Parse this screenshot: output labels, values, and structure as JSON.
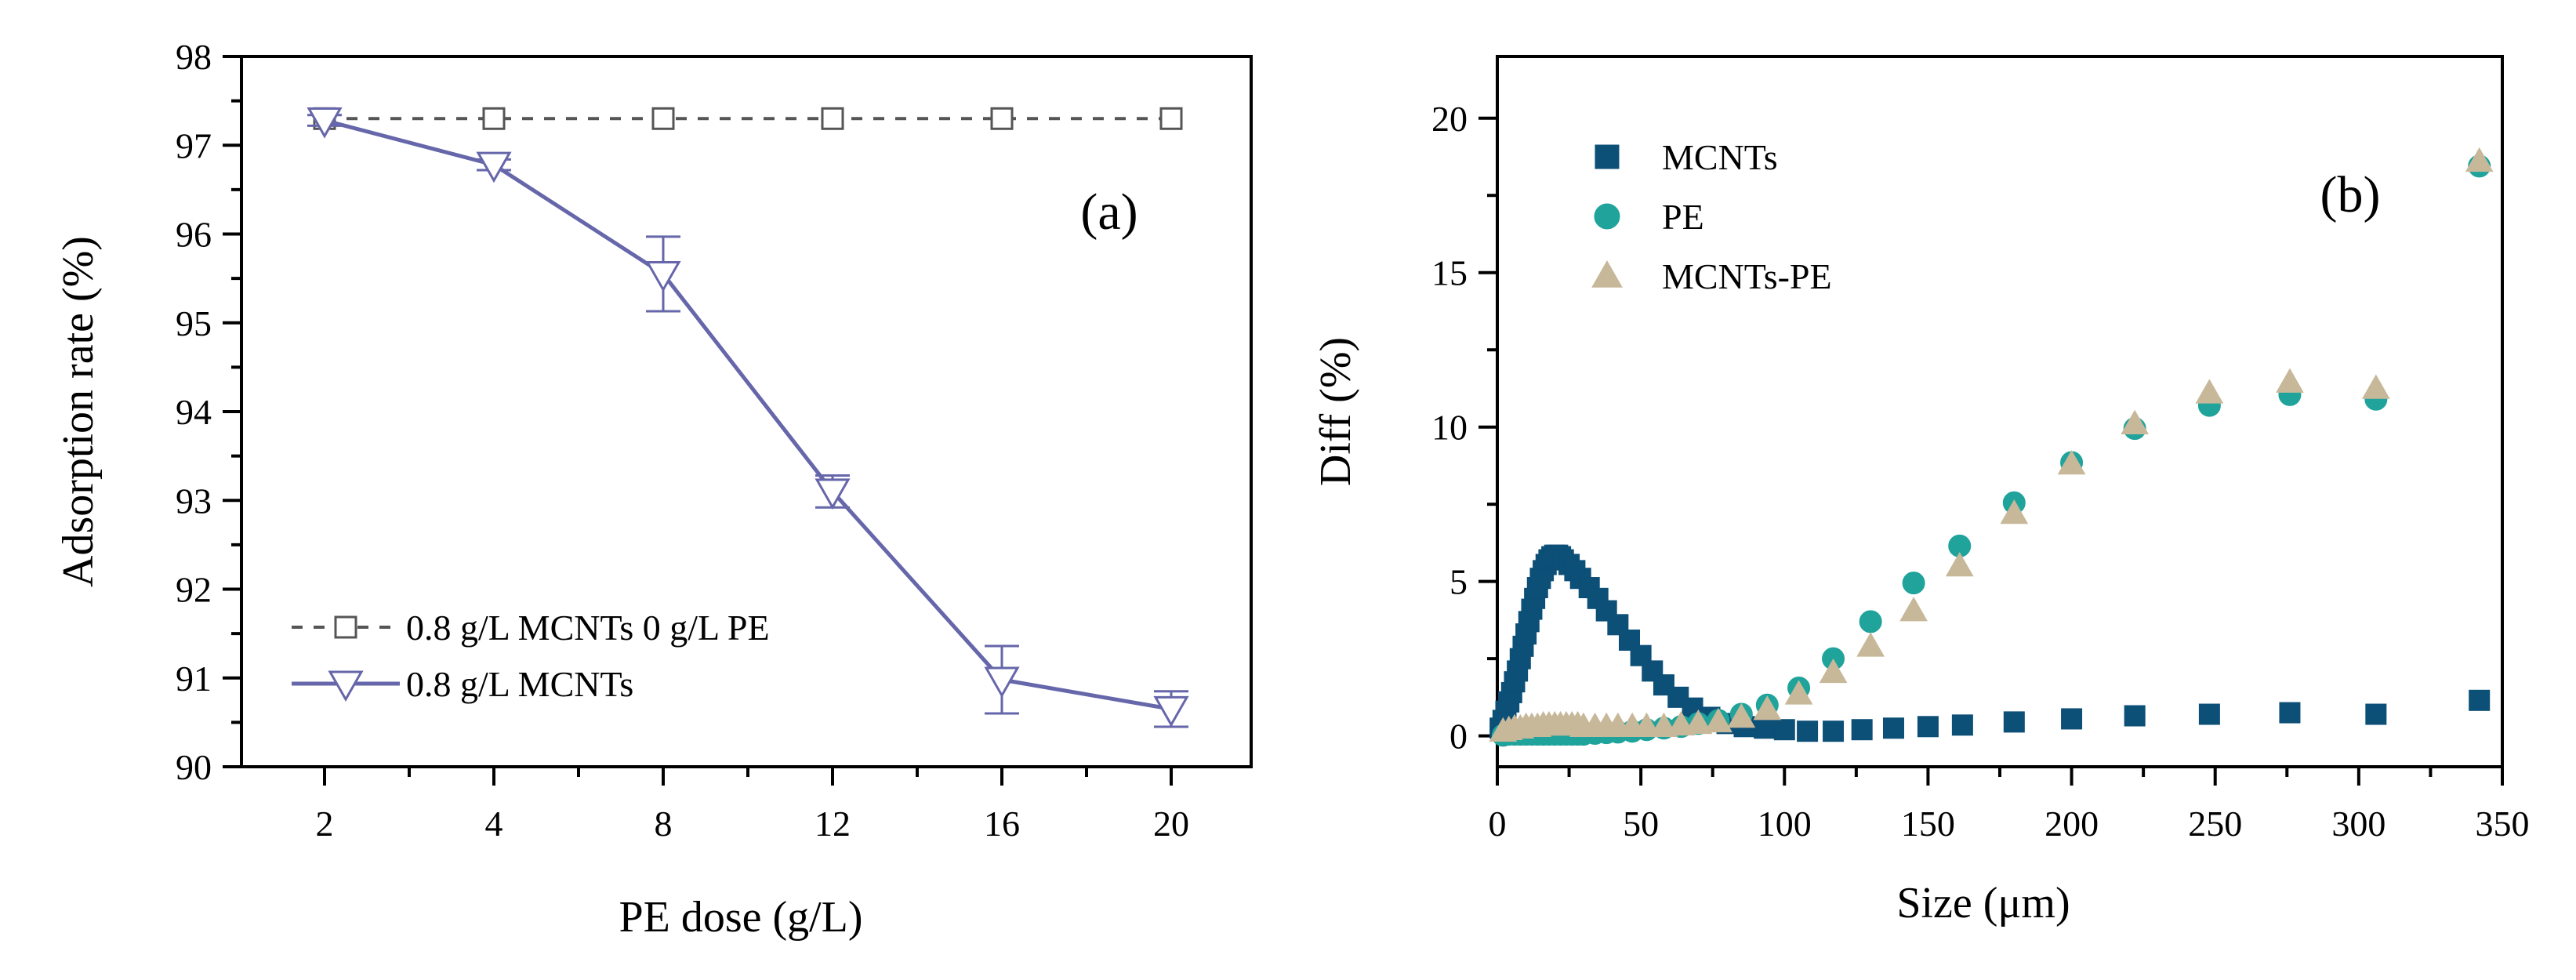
{
  "chart_data": [
    {
      "type": "line",
      "panel_label": "(a)",
      "xlabel": "PE dose (g/L)",
      "ylabel": "Adsorption rate (%)",
      "categories": [
        "2",
        "4",
        "8",
        "12",
        "16",
        "20"
      ],
      "ylim": [
        90,
        98
      ],
      "yticks": [
        "90",
        "91",
        "92",
        "93",
        "94",
        "95",
        "96",
        "97",
        "98"
      ],
      "legend_position": "bottom-left",
      "grid": false,
      "series": [
        {
          "name": "0.8 g/L MCNTs 0 g/L PE",
          "values": [
            97.3,
            97.3,
            97.3,
            97.3,
            97.3,
            97.3
          ],
          "marker": "square-open",
          "line": "dashed",
          "color": "#555555"
        },
        {
          "name": "0.8 g/L MCNTs",
          "values": [
            97.28,
            96.78,
            95.55,
            93.1,
            90.98,
            90.65
          ],
          "error": [
            0.06,
            0.06,
            0.42,
            0.18,
            0.38,
            0.2
          ],
          "marker": "triangle-down-open",
          "line": "solid",
          "color": "#6666aa"
        }
      ]
    },
    {
      "type": "scatter",
      "panel_label": "(b)",
      "xlabel": "Size (μm)",
      "ylabel": "Diff (%)",
      "xlim": [
        0,
        350
      ],
      "ylim": [
        -1,
        22
      ],
      "xticks": [
        "0",
        "50",
        "100",
        "150",
        "200",
        "250",
        "300",
        "350"
      ],
      "yticks": [
        "0",
        "5",
        "10",
        "15",
        "20"
      ],
      "legend_position": "top-left",
      "grid": false,
      "series": [
        {
          "name": "MCNTs",
          "marker": "square",
          "color": "#0c4f77",
          "points": [
            [
              1,
              0.25
            ],
            [
              2,
              0.5
            ],
            [
              3,
              0.8
            ],
            [
              4,
              1.1
            ],
            [
              5,
              1.4
            ],
            [
              6,
              1.75
            ],
            [
              7,
              2.1
            ],
            [
              8,
              2.5
            ],
            [
              9,
              2.9
            ],
            [
              10,
              3.3
            ],
            [
              11,
              3.7
            ],
            [
              12,
              4.1
            ],
            [
              13,
              4.45
            ],
            [
              14,
              4.8
            ],
            [
              15,
              5.1
            ],
            [
              16,
              5.35
            ],
            [
              17,
              5.55
            ],
            [
              18,
              5.7
            ],
            [
              19,
              5.8
            ],
            [
              20,
              5.85
            ],
            [
              21,
              5.85
            ],
            [
              22,
              5.8
            ],
            [
              23,
              5.7
            ],
            [
              25,
              5.55
            ],
            [
              27,
              5.35
            ],
            [
              29,
              5.1
            ],
            [
              32,
              4.8
            ],
            [
              35,
              4.45
            ],
            [
              38,
              4.05
            ],
            [
              42,
              3.6
            ],
            [
              46,
              3.1
            ],
            [
              50,
              2.6
            ],
            [
              54,
              2.1
            ],
            [
              58,
              1.65
            ],
            [
              63,
              1.25
            ],
            [
              68,
              0.9
            ],
            [
              74,
              0.6
            ],
            [
              80,
              0.4
            ],
            [
              86,
              0.3
            ],
            [
              93,
              0.25
            ],
            [
              100,
              0.2
            ],
            [
              108,
              0.15
            ],
            [
              117,
              0.15
            ],
            [
              127,
              0.2
            ],
            [
              138,
              0.25
            ],
            [
              150,
              0.3
            ],
            [
              162,
              0.35
            ],
            [
              180,
              0.45
            ],
            [
              200,
              0.55
            ],
            [
              222,
              0.65
            ],
            [
              248,
              0.7
            ],
            [
              276,
              0.75
            ],
            [
              306,
              0.7
            ],
            [
              342,
              1.15
            ]
          ]
        },
        {
          "name": "PE",
          "marker": "circle",
          "color": "#1fa39b",
          "points": [
            [
              2,
              0.02
            ],
            [
              4,
              0.05
            ],
            [
              6,
              0.05
            ],
            [
              8,
              0.05
            ],
            [
              10,
              0.05
            ],
            [
              12,
              0.05
            ],
            [
              14,
              0.05
            ],
            [
              16,
              0.05
            ],
            [
              18,
              0.05
            ],
            [
              20,
              0.05
            ],
            [
              22,
              0.05
            ],
            [
              24,
              0.05
            ],
            [
              26,
              0.05
            ],
            [
              28,
              0.05
            ],
            [
              30,
              0.05
            ],
            [
              34,
              0.08
            ],
            [
              38,
              0.1
            ],
            [
              42,
              0.12
            ],
            [
              47,
              0.15
            ],
            [
              52,
              0.2
            ],
            [
              58,
              0.25
            ],
            [
              64,
              0.3
            ],
            [
              70,
              0.4
            ],
            [
              77,
              0.5
            ],
            [
              85,
              0.7
            ],
            [
              94,
              1.0
            ],
            [
              105,
              1.55
            ],
            [
              117,
              2.5
            ],
            [
              130,
              3.7
            ],
            [
              145,
              4.95
            ],
            [
              161,
              6.15
            ],
            [
              180,
              7.55
            ],
            [
              200,
              8.85
            ],
            [
              222,
              9.95
            ],
            [
              248,
              10.7
            ],
            [
              276,
              11.05
            ],
            [
              306,
              10.9
            ],
            [
              342,
              18.45
            ]
          ]
        },
        {
          "name": "MCNTs-PE",
          "marker": "triangle-up",
          "color": "#c8b89a",
          "points": [
            [
              2,
              0.15
            ],
            [
              4,
              0.2
            ],
            [
              6,
              0.25
            ],
            [
              8,
              0.25
            ],
            [
              10,
              0.3
            ],
            [
              12,
              0.3
            ],
            [
              14,
              0.3
            ],
            [
              16,
              0.35
            ],
            [
              18,
              0.35
            ],
            [
              20,
              0.35
            ],
            [
              22,
              0.35
            ],
            [
              24,
              0.35
            ],
            [
              26,
              0.35
            ],
            [
              28,
              0.35
            ],
            [
              30,
              0.3
            ],
            [
              34,
              0.3
            ],
            [
              38,
              0.3
            ],
            [
              42,
              0.3
            ],
            [
              47,
              0.3
            ],
            [
              52,
              0.3
            ],
            [
              58,
              0.3
            ],
            [
              64,
              0.35
            ],
            [
              70,
              0.4
            ],
            [
              77,
              0.45
            ],
            [
              85,
              0.6
            ],
            [
              94,
              0.85
            ],
            [
              105,
              1.35
            ],
            [
              117,
              2.05
            ],
            [
              130,
              2.9
            ],
            [
              145,
              4.05
            ],
            [
              161,
              5.5
            ],
            [
              180,
              7.2
            ],
            [
              200,
              8.8
            ],
            [
              222,
              10.1
            ],
            [
              248,
              11.1
            ],
            [
              276,
              11.45
            ],
            [
              306,
              11.25
            ],
            [
              342,
              18.6
            ]
          ]
        }
      ]
    }
  ]
}
